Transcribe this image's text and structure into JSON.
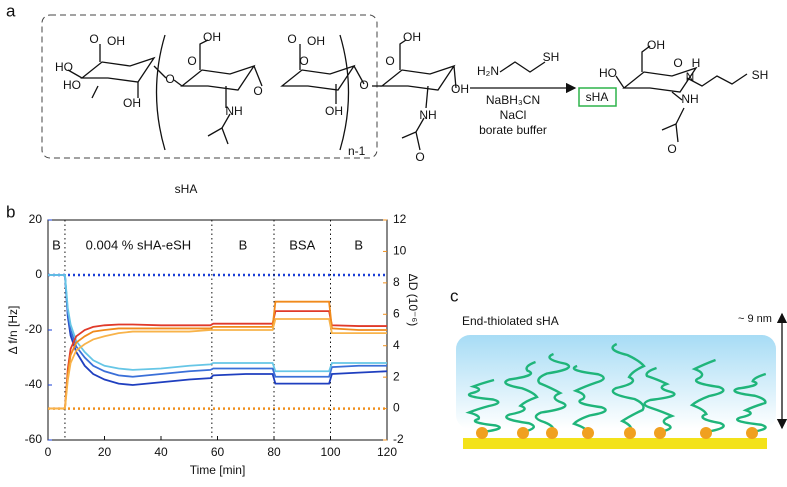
{
  "panel_a": {
    "label": "a",
    "atoms": [
      "O",
      "OH",
      "HO",
      "HO",
      "OH",
      "O",
      "OH",
      "O",
      "NH",
      "O",
      "O",
      "OH",
      "O",
      "OH",
      "O",
      "OH",
      "O",
      "OH",
      "NH",
      "O"
    ],
    "repeat": "n-1",
    "name": "sHA",
    "reagents": [
      "H₂N",
      "SH",
      "NaBH₃CN",
      "NaCl",
      "borate buffer"
    ],
    "product_atoms": [
      "OH",
      "HO",
      "O",
      "H",
      "N",
      "SH",
      "NH",
      "O"
    ],
    "product_box": "sHA"
  },
  "chart_data": {
    "type": "line",
    "panel_label": "b",
    "xlabel": "Time [min]",
    "ylabel": "Δ f/n [Hz]",
    "y2label": "ΔD (10⁻⁶)",
    "xlim": [
      0,
      120
    ],
    "xticks": [
      0,
      20,
      40,
      60,
      80,
      100,
      120
    ],
    "ylim": [
      -60,
      20
    ],
    "yticks": [
      -60,
      -40,
      -20,
      0,
      20
    ],
    "y2lim": [
      -2,
      12
    ],
    "y2ticks": [
      -2,
      0,
      2,
      4,
      6,
      8,
      10,
      12
    ],
    "ycolor": "#1a3fd6",
    "y2color": "#f0901e",
    "phase_lines": [
      6,
      58,
      80,
      100
    ],
    "phases": [
      "B",
      "0.004 % sHA-eSH",
      "B",
      "BSA",
      "B"
    ],
    "reference_lines": [
      {
        "value": 0,
        "axis": "y",
        "color": "#1a3fd6"
      },
      {
        "value": 0,
        "axis": "y2",
        "color": "#f0901e"
      }
    ],
    "x": [
      0,
      5,
      6,
      7,
      8,
      10,
      13,
      16,
      20,
      25,
      30,
      40,
      50,
      57.5,
      58.5,
      70,
      79.5,
      80.5,
      90,
      99.5,
      100.5,
      110,
      120
    ],
    "series": [
      {
        "color": "#1f3fbf",
        "values": [
          0,
          0,
          0,
          -15,
          -22,
          -28,
          -33,
          -36,
          -38,
          -39.5,
          -40,
          -39,
          -38,
          -37.5,
          -36.5,
          -36,
          -36,
          -39.5,
          -39.5,
          -39.5,
          -36,
          -35.5,
          -35
        ]
      },
      {
        "color": "#3a6fd8",
        "values": [
          0,
          0,
          0,
          -14,
          -20,
          -26,
          -30,
          -33,
          -35,
          -36.5,
          -37,
          -36,
          -35,
          -34.5,
          -34,
          -34,
          -34,
          -37,
          -37,
          -37,
          -33.5,
          -33,
          -33
        ]
      },
      {
        "color": "#66c6e6",
        "values": [
          0,
          0,
          0,
          -12,
          -18,
          -24,
          -28,
          -31,
          -33,
          -34,
          -34.5,
          -34,
          -33,
          -32.5,
          -32,
          -32,
          -32,
          -35,
          -35,
          -35,
          -32,
          -32,
          -32
        ]
      },
      {
        "color": "#e03a2a",
        "axis": "y2",
        "values": [
          0,
          0,
          0,
          2.5,
          3.8,
          4.6,
          5.0,
          5.2,
          5.3,
          5.35,
          5.35,
          5.3,
          5.3,
          5.3,
          5.4,
          5.4,
          5.4,
          6.2,
          6.2,
          6.2,
          5.3,
          5.25,
          5.25
        ]
      },
      {
        "color": "#f08a1c",
        "axis": "y2",
        "values": [
          0,
          0,
          0,
          2.2,
          3.4,
          4.2,
          4.6,
          4.9,
          5.0,
          5.1,
          5.1,
          5.1,
          5.1,
          5.1,
          5.2,
          5.2,
          5.2,
          6.8,
          6.8,
          6.8,
          5.1,
          5.0,
          5.0
        ]
      },
      {
        "color": "#f8b34a",
        "axis": "y2",
        "values": [
          0,
          0,
          0,
          1.8,
          2.9,
          3.7,
          4.1,
          4.4,
          4.6,
          4.8,
          4.9,
          4.9,
          4.9,
          5.0,
          5.0,
          5.0,
          5.0,
          5.7,
          5.7,
          5.7,
          4.8,
          4.8,
          4.8
        ]
      }
    ]
  },
  "panel_c": {
    "label": "c",
    "title": "End-thiolated sHA",
    "height": "~ 9 nm"
  }
}
